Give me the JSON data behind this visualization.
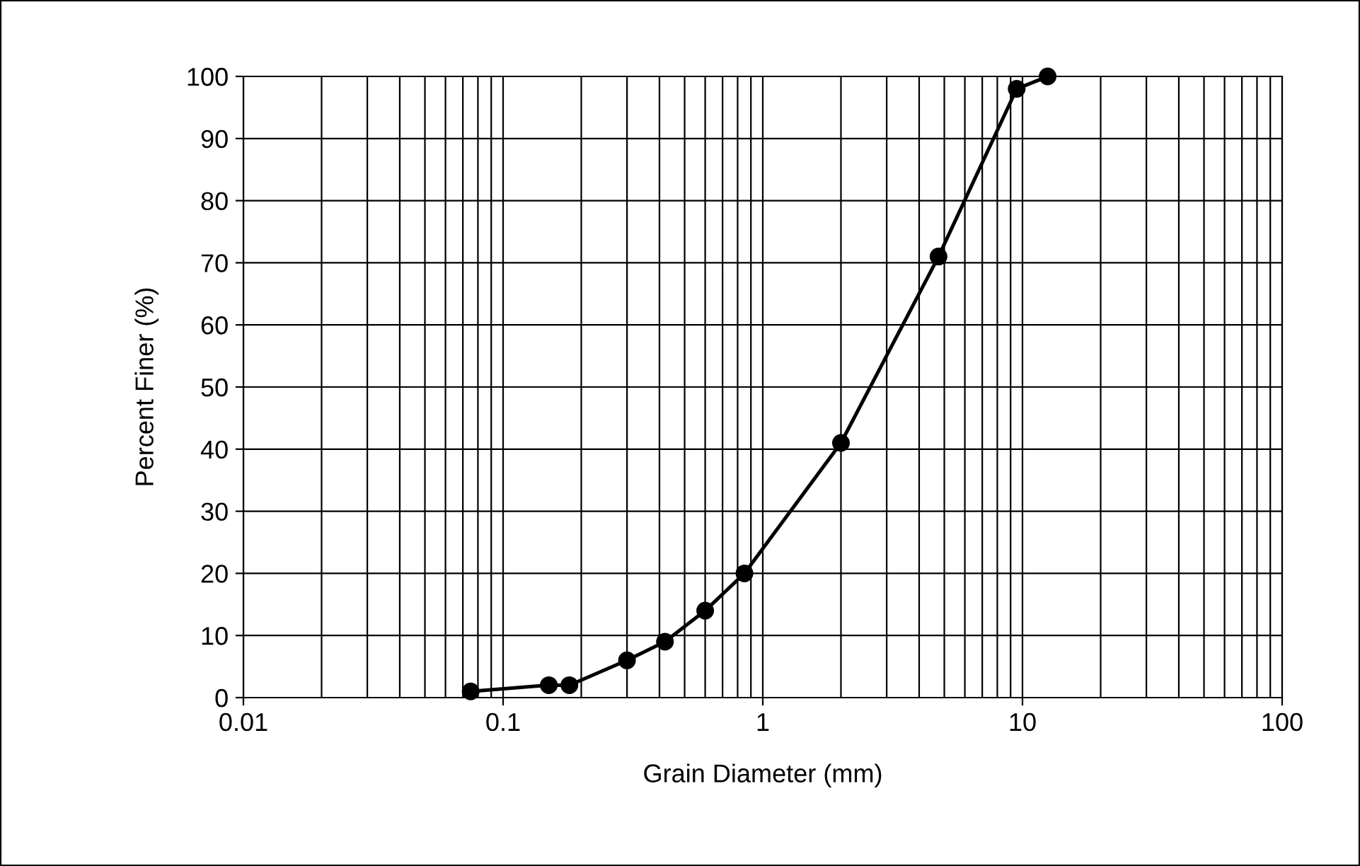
{
  "chart_data": {
    "type": "line",
    "xlabel": "Grain Diameter (mm)",
    "ylabel": "Percent Finer (%)",
    "log": "x",
    "x": [
      0.075,
      0.15,
      0.18,
      0.3,
      0.42,
      0.6,
      0.85,
      2,
      4.75,
      9.5,
      12.5
    ],
    "values": [
      1,
      2,
      2,
      6,
      9,
      14,
      20,
      41,
      71,
      98,
      100
    ],
    "color": "#000000",
    "marker": "circle",
    "line_style": "solid",
    "grid": true,
    "legend": false,
    "xlim": [
      0.01,
      100
    ],
    "xticks": [
      0.01,
      0.1,
      1,
      10,
      100
    ],
    "ylim": [
      0,
      100
    ],
    "yticks": [
      0,
      10,
      20,
      30,
      40,
      50,
      60,
      70,
      80,
      90,
      100
    ]
  }
}
